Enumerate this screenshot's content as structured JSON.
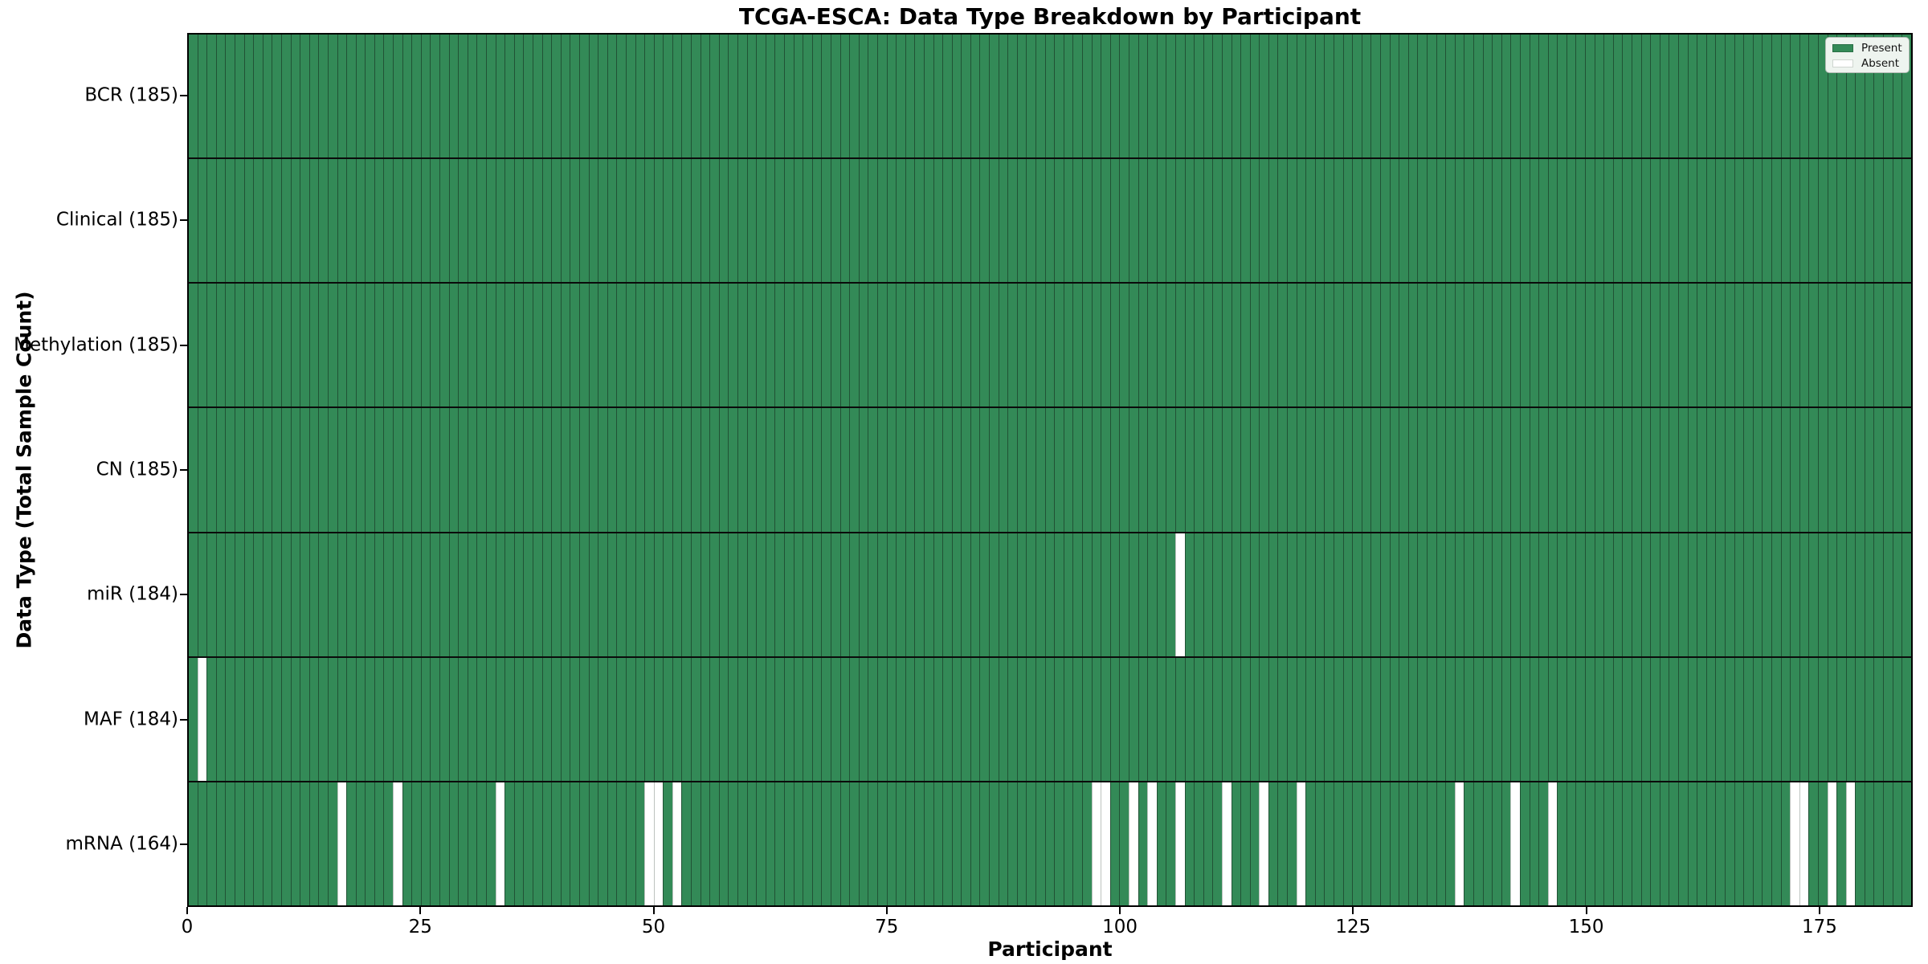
{
  "title": "TCGA-ESCA: Data Type Breakdown by Participant",
  "x_axis": {
    "label": "Participant",
    "tick_labels": [
      "0",
      "25",
      "50",
      "75",
      "100",
      "125",
      "150",
      "175"
    ]
  },
  "y_axis": {
    "label": "Data Type (Total Sample Count)"
  },
  "legend": {
    "present_label": "Present",
    "absent_label": "Absent"
  },
  "colors": {
    "present": "#338a57",
    "absent": "#ffffff",
    "cell_edge": "rgba(18,36,26,0.55)",
    "row_divider": "#0b0b0b",
    "spine": "#000000",
    "legend_bg": "#eef4ef"
  },
  "chart_data": {
    "type": "heatmap",
    "title": "TCGA-ESCA: Data Type Breakdown by Participant",
    "xlabel": "Participant",
    "ylabel": "Data Type (Total Sample Count)",
    "n_participants": 185,
    "x_ticks": [
      0,
      25,
      50,
      75,
      100,
      125,
      150,
      175
    ],
    "xlim": [
      0,
      185
    ],
    "grid": "cell-edges",
    "legend_position": "upper right",
    "legend_entries": [
      {
        "label": "Present",
        "color": "#338a57"
      },
      {
        "label": "Absent",
        "color": "#ffffff"
      }
    ],
    "rows": [
      {
        "label": "BCR (185)",
        "data_type": "BCR",
        "total_samples": 185,
        "absent_participants": []
      },
      {
        "label": "Clinical (185)",
        "data_type": "Clinical",
        "total_samples": 185,
        "absent_participants": []
      },
      {
        "label": "Methylation (185)",
        "data_type": "Methylation",
        "total_samples": 185,
        "absent_participants": []
      },
      {
        "label": "CN (185)",
        "data_type": "CN",
        "total_samples": 185,
        "absent_participants": []
      },
      {
        "label": "miR (184)",
        "data_type": "miR",
        "total_samples": 184,
        "absent_participants": [
          106
        ]
      },
      {
        "label": "MAF (184)",
        "data_type": "MAF",
        "total_samples": 184,
        "absent_participants": [
          1
        ]
      },
      {
        "label": "mRNA (164)",
        "data_type": "mRNA",
        "total_samples": 164,
        "absent_participants": [
          16,
          22,
          33,
          49,
          50,
          52,
          97,
          98,
          101,
          103,
          106,
          111,
          115,
          119,
          136,
          142,
          146,
          172,
          173,
          176,
          178
        ]
      }
    ]
  }
}
